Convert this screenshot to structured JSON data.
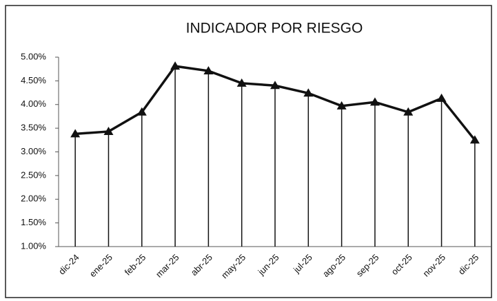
{
  "chart_data": {
    "type": "line",
    "title": "INDICADOR POR RIESGO",
    "categories": [
      "dic-24",
      "ene-25",
      "feb-25",
      "mar-25",
      "abr-25",
      "may-25",
      "jun-25",
      "jul-25",
      "ago-25",
      "sep-25",
      "oct-25",
      "nov-25",
      "dic-25"
    ],
    "series": [
      {
        "name": "Indicador",
        "color": "#111111",
        "values": [
          3.38,
          3.43,
          3.84,
          4.81,
          4.71,
          4.45,
          4.4,
          4.24,
          3.97,
          4.05,
          3.84,
          4.13,
          3.25
        ]
      }
    ],
    "ylim": [
      1,
      5
    ],
    "yticks": [
      {
        "value": 1,
        "label": "1.00%"
      },
      {
        "value": 1.5,
        "label": "1.50%"
      },
      {
        "value": 2,
        "label": "2.00%"
      },
      {
        "value": 2.5,
        "label": "2.50%"
      },
      {
        "value": 3,
        "label": "3.00%"
      },
      {
        "value": 3.5,
        "label": "3.50%"
      },
      {
        "value": 4,
        "label": "4.00%"
      },
      {
        "value": 4.5,
        "label": "4.50%"
      },
      {
        "value": 5,
        "label": "5.00%"
      }
    ],
    "drop_lines": true
  }
}
